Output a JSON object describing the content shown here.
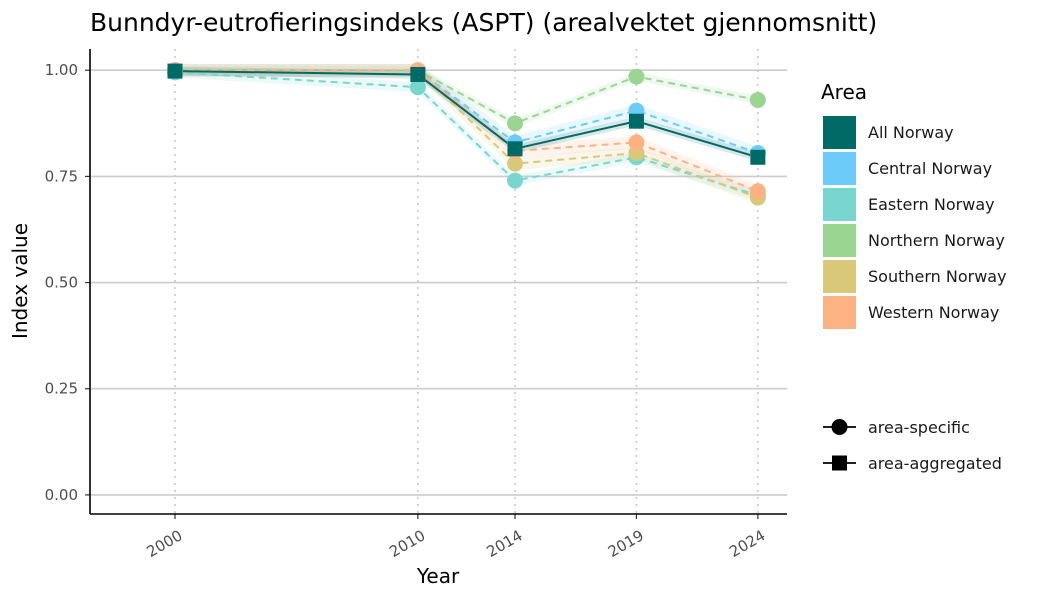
{
  "chart_data": {
    "type": "line",
    "title": "Bunndyr-eutrofieringsindeks (ASPT) (arealvektet gjennomsnitt)",
    "xlabel": "Year",
    "ylabel": "Index value",
    "x": [
      2000,
      2010,
      2014,
      2019,
      2024
    ],
    "xlim": [
      1996.5,
      2025.2
    ],
    "ylim": [
      -0.045,
      1.05
    ],
    "yticks": [
      0.0,
      0.25,
      0.5,
      0.75,
      1.0
    ],
    "ytick_labels": [
      "0.00",
      "0.25",
      "0.50",
      "0.75",
      "1.00"
    ],
    "xtick_labels": [
      "2000",
      "2010",
      "2014",
      "2019",
      "2024"
    ],
    "grid": "horizontal major + dotted vertical at data years",
    "legend_placement": "right",
    "legend_title": "Area",
    "series": [
      {
        "name": "Central Norway",
        "color": "#6dcbf9",
        "marker": "circle",
        "linestyle": "dashed",
        "values": [
          1.0,
          1.0,
          0.83,
          0.905,
          0.805
        ],
        "band": 0.015
      },
      {
        "name": "Eastern Norway",
        "color": "#79d6cf",
        "marker": "circle",
        "linestyle": "dashed",
        "values": [
          0.995,
          0.96,
          0.74,
          0.795,
          0.705
        ],
        "band": 0.012
      },
      {
        "name": "Northern Norway",
        "color": "#9ad592",
        "marker": "circle",
        "linestyle": "dashed",
        "values": [
          1.0,
          1.0,
          0.875,
          0.985,
          0.93
        ],
        "band": 0.01
      },
      {
        "name": "Southern Norway",
        "color": "#d9c87a",
        "marker": "circle",
        "linestyle": "dashed",
        "values": [
          1.0,
          1.0,
          0.78,
          0.805,
          0.7
        ],
        "band": 0.015
      },
      {
        "name": "Western Norway",
        "color": "#fdb283",
        "marker": "circle",
        "linestyle": "dashed",
        "values": [
          1.0,
          1.0,
          0.81,
          0.83,
          0.715
        ],
        "band": 0.015
      },
      {
        "name": "All Norway",
        "color": "#006a66",
        "marker": "square",
        "linestyle": "solid",
        "values": [
          0.998,
          0.99,
          0.815,
          0.88,
          0.795
        ],
        "band": 0.01
      }
    ],
    "legend_items": [
      {
        "label": "All Norway",
        "color": "#006a66"
      },
      {
        "label": "Central Norway",
        "color": "#6dcbf9"
      },
      {
        "label": "Eastern Norway",
        "color": "#79d6cf"
      },
      {
        "label": "Northern Norway",
        "color": "#9ad592"
      },
      {
        "label": "Southern Norway",
        "color": "#d9c87a"
      },
      {
        "label": "Western Norway",
        "color": "#fdb283"
      }
    ],
    "shape_legend": [
      {
        "label": "area-specific",
        "marker": "circle"
      },
      {
        "label": "area-aggregated",
        "marker": "square"
      }
    ]
  }
}
